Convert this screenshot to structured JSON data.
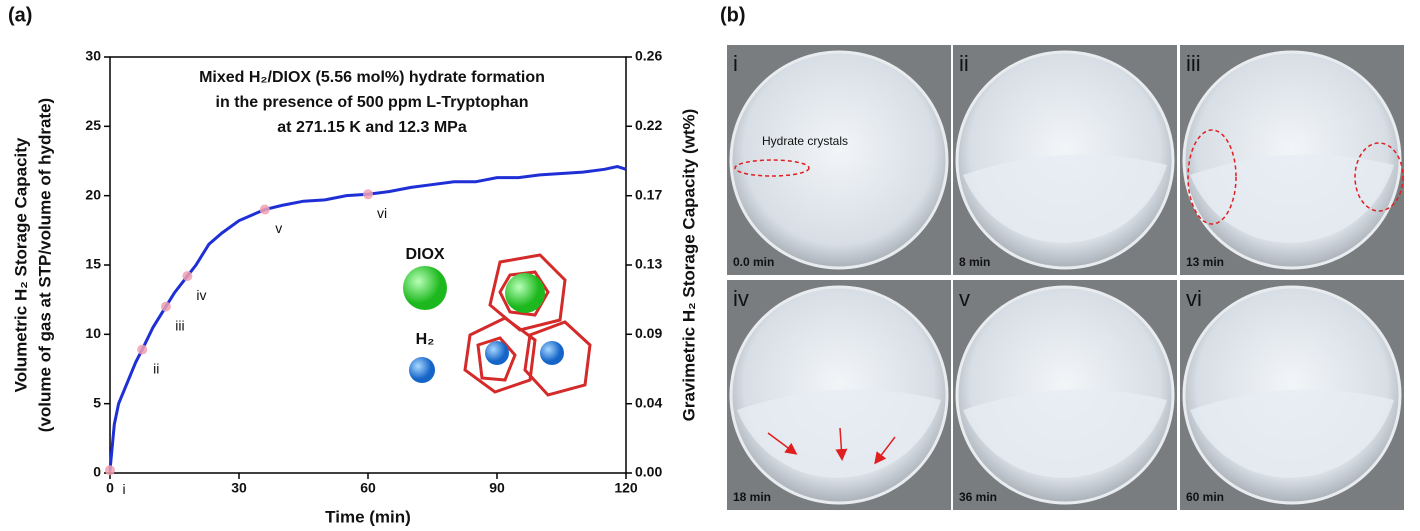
{
  "chart_data": {
    "type": "line",
    "panel_label": "(a)",
    "title_lines": [
      "Mixed H₂/DIOX (5.56 mol%) hydrate formation",
      "in the presence of  500 ppm L-Tryptophan",
      "at 271.15 K and 12.3 MPa"
    ],
    "xlabel": "Time (min)",
    "ylabel_lines": [
      "Volumetric H₂ Storage Capacity",
      "(volume of gas at STP/volume of hydrate)"
    ],
    "y2label": "Gravimetric H₂ Storage Capacity (wt%)",
    "xlim": [
      0,
      120
    ],
    "xticks": [
      0,
      30,
      60,
      90,
      120
    ],
    "ylim": [
      0,
      30
    ],
    "yticks": [
      0,
      5,
      10,
      15,
      20,
      25,
      30
    ],
    "y2lim": [
      0,
      0.26
    ],
    "y2ticks": [
      {
        "value": 0,
        "label": "0.00"
      },
      {
        "value": 0.0433,
        "label": "0.04"
      },
      {
        "value": 0.0867,
        "label": "0.09"
      },
      0.13,
      {
        "value": 0.1733,
        "label": "0.17"
      },
      {
        "value": 0.2167,
        "label": "0.22"
      },
      0.26
    ],
    "series": [
      {
        "color": "#1f2fd6",
        "x": [
          0,
          1,
          2,
          4,
          6,
          7.5,
          10,
          13,
          15,
          18,
          20,
          23,
          26,
          30,
          36,
          40,
          45,
          50,
          55,
          60,
          65,
          70,
          75,
          80,
          85,
          90,
          95,
          100,
          105,
          110,
          115,
          118,
          120
        ],
        "values": [
          0.2,
          3.5,
          5,
          6.5,
          8,
          8.9,
          10.5,
          12,
          13,
          14.2,
          15,
          16.5,
          17.3,
          18.2,
          19,
          19.3,
          19.6,
          19.7,
          20,
          20.1,
          20.3,
          20.6,
          20.8,
          21,
          21,
          21.3,
          21.3,
          21.5,
          21.6,
          21.7,
          21.9,
          22.1,
          21.9
        ]
      }
    ],
    "highlights": {
      "color": "#f0a0b0",
      "x": [
        0,
        7.5,
        13,
        18,
        36,
        60
      ],
      "values": [
        0.2,
        8.9,
        12,
        14.2,
        19,
        20.1
      ],
      "labels": [
        "i",
        "ii",
        "iii",
        "iv",
        "v",
        "vi"
      ]
    },
    "molecule_labels": [
      "DIOX",
      "H₂"
    ]
  },
  "panel_b": {
    "label": "(b)",
    "annotation": "Hydrate crystals",
    "frames": [
      {
        "id": "i",
        "time": "0.0 min"
      },
      {
        "id": "ii",
        "time": "8 min"
      },
      {
        "id": "iii",
        "time": "13 min"
      },
      {
        "id": "iv",
        "time": "18 min"
      },
      {
        "id": "v",
        "time": "36 min"
      },
      {
        "id": "vi",
        "time": "60 min"
      }
    ]
  }
}
